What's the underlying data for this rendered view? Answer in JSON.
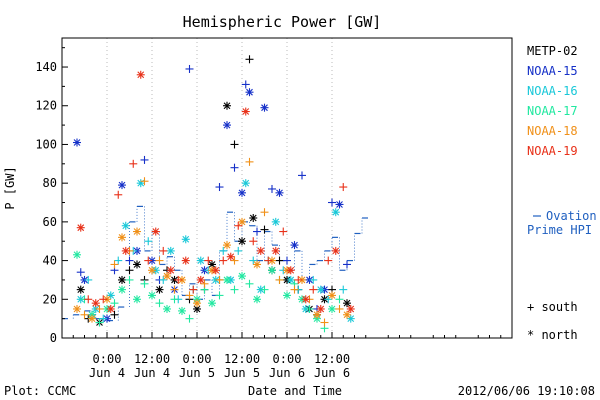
{
  "chart_data": {
    "type": "scatter",
    "title": "Hemispheric Power [GW]",
    "ylabel": "P [GW]",
    "xlabel": "Date and Time",
    "ylim": [
      0,
      155
    ],
    "xlim": [
      0,
      120
    ],
    "yticks": [
      0,
      20,
      40,
      60,
      80,
      100,
      120,
      140
    ],
    "xticks": [
      {
        "x": 12,
        "time": "0:00",
        "date": "Jun 4"
      },
      {
        "x": 24,
        "time": "12:00",
        "date": "Jun 4"
      },
      {
        "x": 36,
        "time": "0:00",
        "date": "Jun 5"
      },
      {
        "x": 48,
        "time": "12:00",
        "date": "Jun 5"
      },
      {
        "x": 60,
        "time": "0:00",
        "date": "Jun 6"
      },
      {
        "x": 72,
        "time": "12:00",
        "date": "Jun 6"
      }
    ],
    "legend_position": "right",
    "series": [
      {
        "name": "METP-02",
        "color": "#000000",
        "points": [
          [
            5,
            25
          ],
          [
            7,
            10
          ],
          [
            10,
            8
          ],
          [
            14,
            12
          ],
          [
            16,
            30
          ],
          [
            18,
            35
          ],
          [
            20,
            38
          ],
          [
            22,
            30
          ],
          [
            26,
            25
          ],
          [
            28,
            35
          ],
          [
            30,
            30
          ],
          [
            34,
            20
          ],
          [
            36,
            15
          ],
          [
            38,
            25
          ],
          [
            40,
            38
          ],
          [
            42,
            30
          ],
          [
            44,
            120
          ],
          [
            46,
            100
          ],
          [
            48,
            50
          ],
          [
            50,
            144
          ],
          [
            51,
            62
          ],
          [
            54,
            56
          ],
          [
            56,
            35
          ],
          [
            58,
            40
          ],
          [
            60,
            30
          ],
          [
            63,
            25
          ],
          [
            66,
            15
          ],
          [
            68,
            12
          ],
          [
            70,
            20
          ],
          [
            72,
            25
          ],
          [
            76,
            18
          ]
        ]
      },
      {
        "name": "NOAA-15",
        "color": "#1530c8",
        "points": [
          [
            4,
            101
          ],
          [
            5,
            34
          ],
          [
            6,
            30
          ],
          [
            8,
            12
          ],
          [
            12,
            10
          ],
          [
            14,
            35
          ],
          [
            16,
            79
          ],
          [
            18,
            40
          ],
          [
            20,
            45
          ],
          [
            22,
            92
          ],
          [
            24,
            40
          ],
          [
            26,
            30
          ],
          [
            30,
            25
          ],
          [
            34,
            139
          ],
          [
            38,
            35
          ],
          [
            42,
            78
          ],
          [
            44,
            110
          ],
          [
            46,
            88
          ],
          [
            48,
            75
          ],
          [
            49,
            131
          ],
          [
            50,
            127
          ],
          [
            52,
            55
          ],
          [
            54,
            119
          ],
          [
            56,
            77
          ],
          [
            58,
            75
          ],
          [
            60,
            40
          ],
          [
            62,
            48
          ],
          [
            64,
            84
          ],
          [
            66,
            30
          ],
          [
            68,
            15
          ],
          [
            70,
            25
          ],
          [
            72,
            70
          ],
          [
            74,
            69
          ],
          [
            76,
            38
          ]
        ]
      },
      {
        "name": "NOAA-16",
        "color": "#18c8d8",
        "points": [
          [
            5,
            20
          ],
          [
            7,
            30
          ],
          [
            9,
            15
          ],
          [
            11,
            10
          ],
          [
            13,
            22
          ],
          [
            15,
            40
          ],
          [
            17,
            58
          ],
          [
            19,
            45
          ],
          [
            21,
            80
          ],
          [
            23,
            50
          ],
          [
            25,
            35
          ],
          [
            27,
            30
          ],
          [
            29,
            45
          ],
          [
            31,
            20
          ],
          [
            33,
            51
          ],
          [
            35,
            25
          ],
          [
            37,
            40
          ],
          [
            39,
            35
          ],
          [
            41,
            30
          ],
          [
            43,
            45
          ],
          [
            45,
            30
          ],
          [
            47,
            45
          ],
          [
            49,
            80
          ],
          [
            51,
            40
          ],
          [
            53,
            25
          ],
          [
            55,
            40
          ],
          [
            57,
            60
          ],
          [
            59,
            35
          ],
          [
            61,
            30
          ],
          [
            63,
            25
          ],
          [
            65,
            15
          ],
          [
            67,
            30
          ],
          [
            69,
            25
          ],
          [
            71,
            20
          ],
          [
            73,
            65
          ],
          [
            75,
            25
          ],
          [
            77,
            10
          ]
        ]
      },
      {
        "name": "NOAA-17",
        "color": "#20e8a0",
        "points": [
          [
            4,
            43
          ],
          [
            6,
            20
          ],
          [
            8,
            12
          ],
          [
            10,
            8
          ],
          [
            12,
            15
          ],
          [
            14,
            18
          ],
          [
            16,
            25
          ],
          [
            18,
            30
          ],
          [
            20,
            20
          ],
          [
            22,
            28
          ],
          [
            24,
            22
          ],
          [
            26,
            18
          ],
          [
            28,
            15
          ],
          [
            30,
            20
          ],
          [
            32,
            14
          ],
          [
            34,
            10
          ],
          [
            36,
            20
          ],
          [
            38,
            25
          ],
          [
            40,
            18
          ],
          [
            42,
            22
          ],
          [
            44,
            30
          ],
          [
            46,
            25
          ],
          [
            48,
            32
          ],
          [
            50,
            28
          ],
          [
            52,
            20
          ],
          [
            54,
            25
          ],
          [
            56,
            35
          ],
          [
            58,
            30
          ],
          [
            60,
            22
          ],
          [
            62,
            28
          ],
          [
            64,
            20
          ],
          [
            66,
            15
          ],
          [
            68,
            10
          ],
          [
            70,
            5
          ],
          [
            72,
            15
          ],
          [
            74,
            20
          ]
        ]
      },
      {
        "name": "NOAA-18",
        "color": "#f09018",
        "points": [
          [
            4,
            15
          ],
          [
            6,
            12
          ],
          [
            8,
            10
          ],
          [
            10,
            15
          ],
          [
            12,
            20
          ],
          [
            14,
            38
          ],
          [
            16,
            52
          ],
          [
            18,
            45
          ],
          [
            20,
            55
          ],
          [
            22,
            81
          ],
          [
            24,
            35
          ],
          [
            26,
            40
          ],
          [
            28,
            32
          ],
          [
            30,
            25
          ],
          [
            32,
            30
          ],
          [
            34,
            22
          ],
          [
            36,
            18
          ],
          [
            38,
            28
          ],
          [
            40,
            35
          ],
          [
            42,
            30
          ],
          [
            44,
            48
          ],
          [
            46,
            40
          ],
          [
            48,
            60
          ],
          [
            50,
            91
          ],
          [
            52,
            38
          ],
          [
            54,
            65
          ],
          [
            56,
            40
          ],
          [
            58,
            30
          ],
          [
            60,
            35
          ],
          [
            62,
            25
          ],
          [
            64,
            30
          ],
          [
            66,
            20
          ],
          [
            68,
            12
          ],
          [
            70,
            8
          ],
          [
            72,
            22
          ],
          [
            74,
            15
          ],
          [
            76,
            12
          ]
        ]
      },
      {
        "name": "NOAA-19",
        "color": "#e83018",
        "points": [
          [
            5,
            57
          ],
          [
            7,
            20
          ],
          [
            9,
            18
          ],
          [
            11,
            20
          ],
          [
            13,
            15
          ],
          [
            15,
            74
          ],
          [
            17,
            45
          ],
          [
            19,
            90
          ],
          [
            21,
            136
          ],
          [
            23,
            40
          ],
          [
            25,
            55
          ],
          [
            27,
            45
          ],
          [
            29,
            35
          ],
          [
            31,
            30
          ],
          [
            33,
            40
          ],
          [
            35,
            25
          ],
          [
            37,
            30
          ],
          [
            39,
            40
          ],
          [
            41,
            35
          ],
          [
            43,
            40
          ],
          [
            45,
            42
          ],
          [
            47,
            58
          ],
          [
            49,
            117
          ],
          [
            51,
            50
          ],
          [
            53,
            45
          ],
          [
            55,
            40
          ],
          [
            57,
            45
          ],
          [
            59,
            55
          ],
          [
            61,
            35
          ],
          [
            63,
            30
          ],
          [
            65,
            20
          ],
          [
            67,
            25
          ],
          [
            69,
            15
          ],
          [
            71,
            40
          ],
          [
            73,
            45
          ],
          [
            75,
            78
          ],
          [
            77,
            15
          ]
        ]
      }
    ],
    "ovation": {
      "name": "Ovation Prime HPI",
      "color": "#2060c0",
      "values": [
        [
          0,
          10
        ],
        [
          3,
          12
        ],
        [
          6,
          14
        ],
        [
          9,
          10
        ],
        [
          12,
          9
        ],
        [
          15,
          16
        ],
        [
          18,
          60
        ],
        [
          20,
          68
        ],
        [
          22,
          45
        ],
        [
          24,
          55
        ],
        [
          26,
          38
        ],
        [
          28,
          42
        ],
        [
          30,
          35
        ],
        [
          32,
          22
        ],
        [
          34,
          28
        ],
        [
          36,
          20
        ],
        [
          38,
          30
        ],
        [
          40,
          22
        ],
        [
          42,
          45
        ],
        [
          44,
          65
        ],
        [
          46,
          50
        ],
        [
          48,
          60
        ],
        [
          50,
          58
        ],
        [
          52,
          40
        ],
        [
          54,
          55
        ],
        [
          56,
          48
        ],
        [
          58,
          40
        ],
        [
          60,
          35
        ],
        [
          62,
          45
        ],
        [
          64,
          30
        ],
        [
          66,
          38
        ],
        [
          68,
          40
        ],
        [
          70,
          45
        ],
        [
          72,
          52
        ],
        [
          74,
          35
        ],
        [
          76,
          40
        ],
        [
          78,
          54
        ],
        [
          80,
          62
        ]
      ]
    },
    "marker_legend": [
      {
        "symbol": "+",
        "label": "south"
      },
      {
        "symbol": "*",
        "label": "north"
      }
    ]
  },
  "footer": {
    "plot_label": "Plot: CCMC",
    "timestamp": "2012/06/06 19:10:08"
  }
}
